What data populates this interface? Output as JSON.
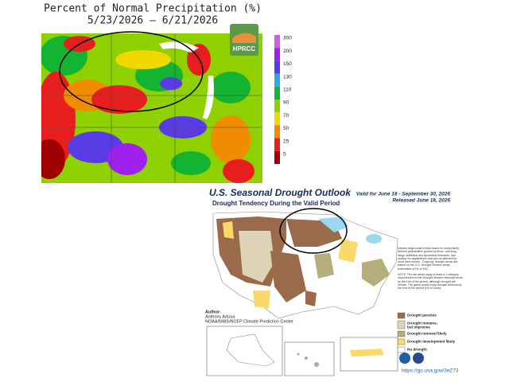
{
  "precip_map": {
    "title": "Percent of Normal Precipitation (%)",
    "period": "5/23/2026 – 6/21/2026",
    "logo": "HPRCC",
    "colorbar": [
      {
        "label": 300,
        "color": "#d65ae6"
      },
      {
        "label": 200,
        "color": "#a020f0"
      },
      {
        "label": 150,
        "color": "#5a3ce6"
      },
      {
        "label": 130,
        "color": "#2aa9e6"
      },
      {
        "label": 110,
        "color": "#12b432"
      },
      {
        "label": 90,
        "color": "#8fd000"
      },
      {
        "label": 70,
        "color": "#f0d800"
      },
      {
        "label": 50,
        "color": "#f08c00"
      },
      {
        "label": 25,
        "color": "#e81e1e"
      },
      {
        "label": 5,
        "color": "#a00000"
      }
    ]
  },
  "drought_outlook": {
    "title": "U.S. Seasonal Drought Outlook",
    "subtitle": "Drought Tendency During the Valid Period",
    "valid": "Valid for June 18 - September 30, 2026",
    "released": "Released June 18, 2026",
    "description": "Depicts large-scale trends based on subjectively derived probabilities guided by short- and long-range statistical and dynamical forecasts. Use caution for applications that can be affected by short lived events. \"Ongoing\" drought areas are based on the U.S. Drought Monitor areas (intensities of D1 to D4).",
    "note": "NOTE: The tan areas imply at least a 1 category improvement in the Drought Monitor intensity levels by the end of the period, although drought will remain. The green areas imply drought removal by the end of the period (D0 or none).",
    "legend": [
      {
        "label": "Drought persists",
        "color": "#9b6a4a"
      },
      {
        "label": "Drought remains, but improves",
        "color": "#ddd3b8"
      },
      {
        "label": "Drought removal likely",
        "color": "#b5ad7a"
      },
      {
        "label": "Drought development likely",
        "color": "#fbd86a"
      },
      {
        "label": "No drought",
        "color": "#ffffff"
      }
    ],
    "author_heading": "Author:",
    "author": "Anthony Artusa",
    "agency": "NOAA/NWS/NCEP Climate Prediction Center",
    "url": "https://go.usa.gov/3eZ73"
  }
}
